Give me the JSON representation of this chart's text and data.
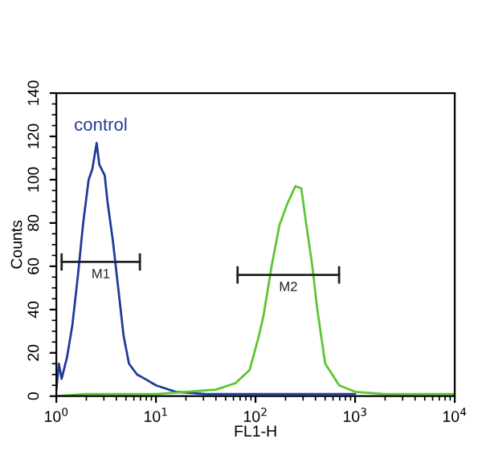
{
  "chart_data": {
    "type": "line",
    "xlabel": "FL1-H",
    "ylabel": "Counts",
    "log": "x",
    "xlim": [
      1,
      10000
    ],
    "xticks": [
      {
        "value": 1,
        "label": "10$^{0}$"
      },
      {
        "value": 10,
        "label": "10$^{1}$"
      },
      {
        "value": 100,
        "label": "10$^{2}$"
      },
      {
        "value": 1000,
        "label": "10$^{3}$"
      },
      {
        "value": 10000,
        "label": "10$^{4}$"
      }
    ],
    "ylim": [
      0,
      140
    ],
    "yticks": [
      0,
      20,
      40,
      60,
      80,
      100,
      120,
      140
    ],
    "grid": false,
    "legend": false,
    "series": [
      {
        "name": "control",
        "color": "#1f3a9c",
        "x": [
          1,
          1.06,
          1.13,
          1.28,
          1.45,
          1.64,
          1.86,
          2.11,
          2.3,
          2.54,
          2.7,
          3.06,
          3.26,
          3.69,
          4.18,
          4.73,
          5.36,
          6.46,
          7.76,
          10,
          15.8,
          31.6,
          100,
          1000
        ],
        "values": [
          3,
          15,
          8,
          18,
          33,
          55,
          80,
          100,
          105,
          117,
          107,
          102,
          90,
          72,
          50,
          28,
          15,
          10,
          8,
          5,
          2,
          1,
          1,
          1
        ]
      },
      {
        "color": "#5cc62e",
        "x": [
          1,
          2,
          5,
          10,
          20,
          40,
          63,
          87,
          107,
          120,
          145,
          174,
          209,
          251,
          288,
          324,
          372,
          417,
          501,
          692,
          1000,
          2000,
          10000
        ],
        "values": [
          0,
          1,
          1,
          1,
          2,
          3,
          6,
          12,
          27,
          37,
          60,
          79,
          89,
          97,
          96,
          79,
          60,
          40,
          15,
          5,
          2,
          1,
          1
        ]
      },
      {
        "name": "M1",
        "color": "#222222",
        "x": [
          1.13,
          6.9
        ],
        "values": [
          62,
          62
        ],
        "errors": [
          4,
          4
        ]
      },
      {
        "name": "M2",
        "color": "#222222",
        "x": [
          66,
          690
        ],
        "values": [
          56,
          56
        ],
        "errors": [
          4,
          4
        ]
      }
    ]
  }
}
